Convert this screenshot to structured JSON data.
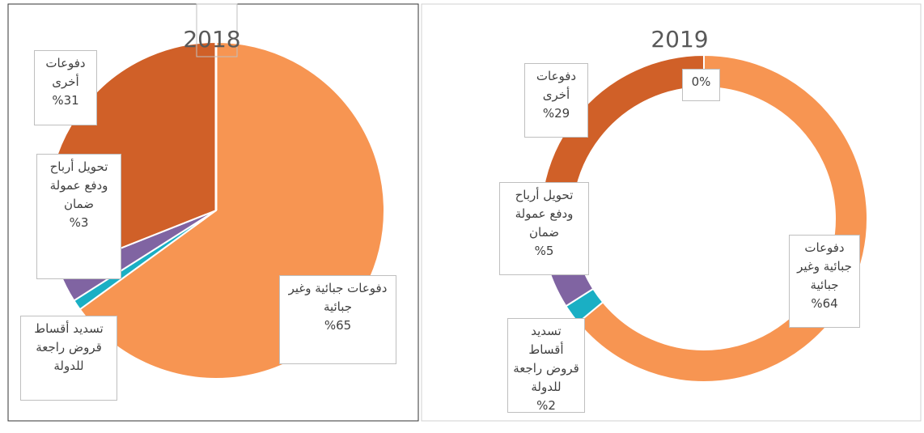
{
  "chart_data": [
    {
      "type": "pie",
      "title": "2018",
      "categories": [
        "دفوعات جبائية وغير جبائية",
        "تسديد أقساط قروض راجعة للدولة",
        "تحويل أرباح ودفع عمولة ضمان",
        "دفوعات أخرى"
      ],
      "values": [
        65,
        1,
        3,
        31
      ],
      "value_labels": [
        "%65",
        null,
        "%3",
        "%31"
      ],
      "colors": [
        "#f79552",
        "#1aafc4",
        "#8064a2",
        "#d06028"
      ]
    },
    {
      "type": "donut",
      "title": "2019",
      "categories": [
        "دفوعات جبائية وغير جبائية",
        "تسديد أقساط قروض راجعة للدولة",
        "تحويل أرباح ودفع عمولة ضمان",
        "دفوعات أخرى",
        null
      ],
      "values": [
        64,
        2,
        5,
        29,
        0
      ],
      "value_labels": [
        "%64",
        "%2",
        "%5",
        "%29",
        "0%"
      ],
      "colors": [
        "#f79552",
        "#1aafc4",
        "#8064a2",
        "#d06028",
        "#f79552"
      ]
    }
  ]
}
